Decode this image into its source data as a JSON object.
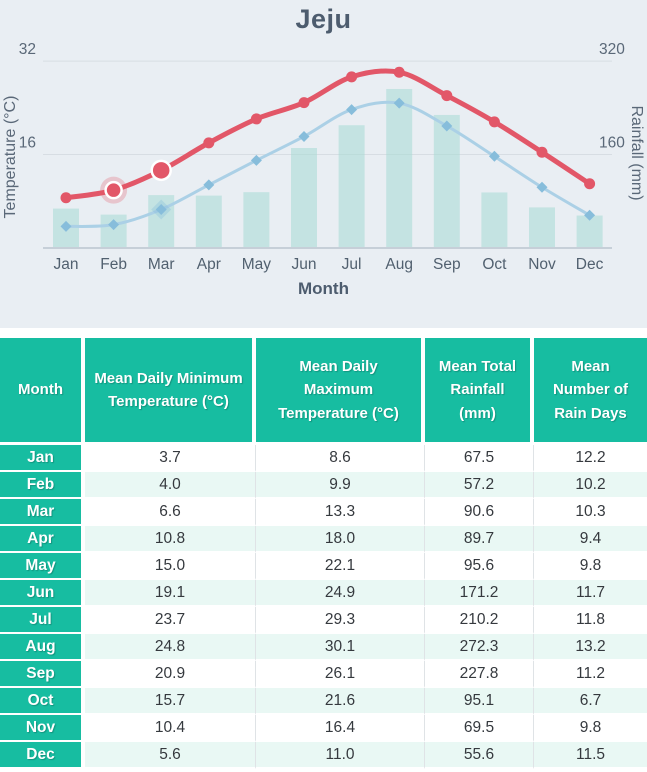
{
  "chart": {
    "title": "Jeju",
    "x_axis_title": "Month",
    "y_left_axis_title": "Temperature (°C)",
    "y_right_axis_title": "Rainfall (mm)"
  },
  "chart_data": {
    "type": "line+bar",
    "title": "Jeju",
    "categories": [
      "Jan",
      "Feb",
      "Mar",
      "Apr",
      "May",
      "Jun",
      "Jul",
      "Aug",
      "Sep",
      "Oct",
      "Nov",
      "Dec"
    ],
    "series": [
      {
        "name": "Mean Daily Maximum Temperature (°C)",
        "type": "line",
        "axis": "left",
        "values": [
          8.6,
          9.9,
          13.3,
          18.0,
          22.1,
          24.9,
          29.3,
          30.1,
          26.1,
          21.6,
          16.4,
          11.0
        ]
      },
      {
        "name": "Mean Daily Minimum Temperature (°C)",
        "type": "line",
        "axis": "left",
        "values": [
          3.7,
          4.0,
          6.6,
          10.8,
          15.0,
          19.1,
          23.7,
          24.8,
          20.9,
          15.7,
          10.4,
          5.6
        ]
      },
      {
        "name": "Mean Total Rainfall (mm)",
        "type": "bar",
        "axis": "right",
        "values": [
          67.5,
          57.2,
          90.6,
          89.7,
          95.6,
          171.2,
          210.2,
          272.3,
          227.8,
          95.1,
          69.5,
          55.6
        ]
      }
    ],
    "xlabel": "Month",
    "y_left": {
      "label": "Temperature (°C)",
      "ticks": [
        32,
        16
      ],
      "range": [
        0,
        34
      ]
    },
    "y_right": {
      "label": "Rainfall (mm)",
      "ticks": [
        320,
        160
      ],
      "range": [
        0,
        340
      ]
    },
    "grid": true,
    "legend_position": "none",
    "highlight": {
      "series": "Mean Daily Maximum Temperature (°C)",
      "category": "Feb",
      "style": "halo-ring"
    },
    "emphasis_category": "Mar"
  },
  "colors": {
    "chart_bg": "#e9eef3",
    "max_line": "#e25768",
    "min_line": "#abd0e6",
    "min_marker": "#87bddb",
    "bar": "#a5dad4",
    "grid": "#d7dde3",
    "axis_line": "#c6cfd8",
    "tick_text": "#5a6878",
    "month_text": "#51606f",
    "table_teal": "#17bda1",
    "row_alt": "#e9f8f4"
  },
  "table": {
    "columns": [
      "Month",
      "Mean Daily Minimum Temperature (°C)",
      "Mean Daily Maximum Temperature (°C)",
      "Mean Total Rainfall (mm)",
      "Mean Number of Rain Days"
    ],
    "rows": [
      {
        "month": "Jan",
        "values": [
          "3.7",
          "8.6",
          "67.5",
          "12.2"
        ]
      },
      {
        "month": "Feb",
        "values": [
          "4.0",
          "9.9",
          "57.2",
          "10.2"
        ]
      },
      {
        "month": "Mar",
        "values": [
          "6.6",
          "13.3",
          "90.6",
          "10.3"
        ]
      },
      {
        "month": "Apr",
        "values": [
          "10.8",
          "18.0",
          "89.7",
          "9.4"
        ]
      },
      {
        "month": "May",
        "values": [
          "15.0",
          "22.1",
          "95.6",
          "9.8"
        ]
      },
      {
        "month": "Jun",
        "values": [
          "19.1",
          "24.9",
          "171.2",
          "11.7"
        ]
      },
      {
        "month": "Jul",
        "values": [
          "23.7",
          "29.3",
          "210.2",
          "11.8"
        ]
      },
      {
        "month": "Aug",
        "values": [
          "24.8",
          "30.1",
          "272.3",
          "13.2"
        ]
      },
      {
        "month": "Sep",
        "values": [
          "20.9",
          "26.1",
          "227.8",
          "11.2"
        ]
      },
      {
        "month": "Oct",
        "values": [
          "15.7",
          "21.6",
          "95.1",
          "6.7"
        ]
      },
      {
        "month": "Nov",
        "values": [
          "10.4",
          "16.4",
          "69.5",
          "9.8"
        ]
      },
      {
        "month": "Dec",
        "values": [
          "5.6",
          "11.0",
          "55.6",
          "11.5"
        ]
      }
    ]
  }
}
